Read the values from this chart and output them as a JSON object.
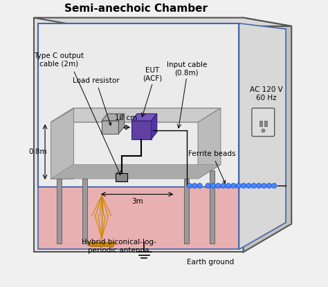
{
  "title": "Semi-anechoic Chamber",
  "bg_color": "#f0f0f0",
  "chamber_wall_color": "#d0d0d0",
  "chamber_inner_color": "#e8e8e8",
  "floor_color": "#e8b0b0",
  "table_color": "#c8c8c8",
  "table_edge": "#888888",
  "load_resistor_color": "#aaaaaa",
  "eut_color": "#6040a0",
  "ferrite_color": "#4488ff",
  "antenna_color": "#cc8800",
  "ground_color": "#333333",
  "outlet_color": "#888888",
  "text_color": "#000000",
  "labels": {
    "title": "Semi-anechoic Chamber",
    "load_resistor": "Load resistor",
    "eut": "EUT\n(ACF)",
    "input_cable": "Input cable\n(0.8m)",
    "type_c": "Type C output\ncable (2m)",
    "height": "0.8m",
    "distance": "3m",
    "spacing": "10 cm",
    "ferrite": "Ferrite beads",
    "antenna": "Hybrid biconical-log-\nperiodic antenna",
    "earth": "Earth ground",
    "ac": "AC 120 V\n60 Hz"
  }
}
